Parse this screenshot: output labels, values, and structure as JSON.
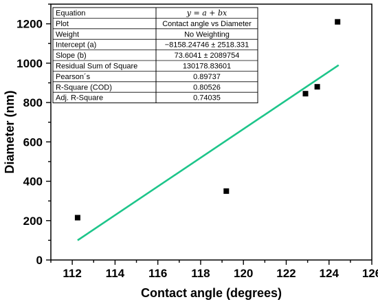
{
  "chart_data": {
    "type": "scatter",
    "xlabel": "Contact angle (degrees)",
    "ylabel": "Diameter (nm)",
    "xlim": [
      111,
      126
    ],
    "ylim": [
      0,
      1300
    ],
    "xticks": [
      112,
      114,
      116,
      118,
      120,
      122,
      124,
      126
    ],
    "yticks": [
      0,
      200,
      400,
      600,
      800,
      1000,
      1200
    ],
    "grid": false,
    "colors": {
      "points": "#000000",
      "fit_line": "#1dc58a",
      "axes": "#000000",
      "table_border": "#000000"
    },
    "points": [
      {
        "x": 112.25,
        "y": 215
      },
      {
        "x": 119.2,
        "y": 350
      },
      {
        "x": 122.9,
        "y": 845
      },
      {
        "x": 123.45,
        "y": 880
      },
      {
        "x": 124.4,
        "y": 1210
      }
    ],
    "fit_line": {
      "x": [
        112.25,
        124.45
      ],
      "y": [
        100,
        990
      ]
    },
    "fit_table": [
      [
        "Equation",
        "y = a + bx"
      ],
      [
        "Plot",
        "Contact angle vs Diameter"
      ],
      [
        "Weight",
        "No Weighting"
      ],
      [
        "Intercept (a)",
        "−8158.24746 ± 2518.331"
      ],
      [
        "Slope (b)",
        "73.6041 ± 2089754"
      ],
      [
        "Residual Sum of Square",
        "130178.83601"
      ],
      [
        "Pearson´s",
        "0.89737"
      ],
      [
        "R-Square (COD)",
        "0.80526"
      ],
      [
        "Adj. R-Square",
        "0.74035"
      ]
    ]
  }
}
